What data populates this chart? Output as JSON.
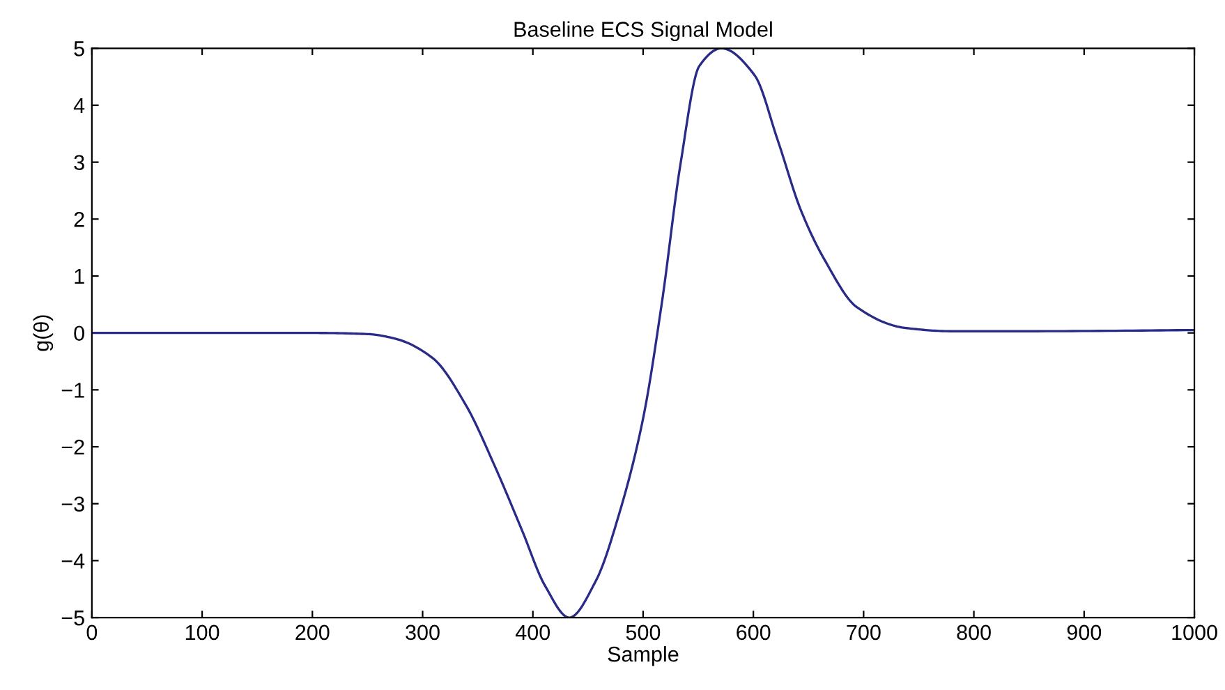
{
  "chart_data": {
    "type": "line",
    "title": "Baseline ECS Signal Model",
    "xlabel": "Sample",
    "ylabel": "g(θ)",
    "x": [
      0,
      100,
      200,
      250,
      275,
      309,
      339,
      365,
      390,
      411,
      433,
      457,
      479,
      500,
      517,
      534,
      551,
      571,
      601,
      622,
      643,
      665,
      694,
      737,
      780,
      850,
      1000
    ],
    "series": [
      {
        "color": "#2a2a88",
        "values": [
          0,
          0,
          0,
          -0.02,
          -0.1,
          -0.44,
          -1.26,
          -2.32,
          -3.46,
          -4.44,
          -5,
          -4.36,
          -3.13,
          -1.5,
          0.53,
          2.98,
          4.69,
          5,
          4.53,
          3.39,
          2.16,
          1.27,
          0.45,
          0.09,
          0.03,
          0.03,
          0.05
        ]
      }
    ],
    "xlim": [
      0,
      1000
    ],
    "xticks": [
      0,
      100,
      200,
      300,
      400,
      500,
      600,
      700,
      800,
      900,
      1000
    ],
    "ylim": [
      -5,
      5
    ],
    "yticks": [
      -5,
      -4,
      -3,
      -2,
      -1,
      0,
      1,
      2,
      3,
      4,
      5
    ],
    "grid": false
  }
}
